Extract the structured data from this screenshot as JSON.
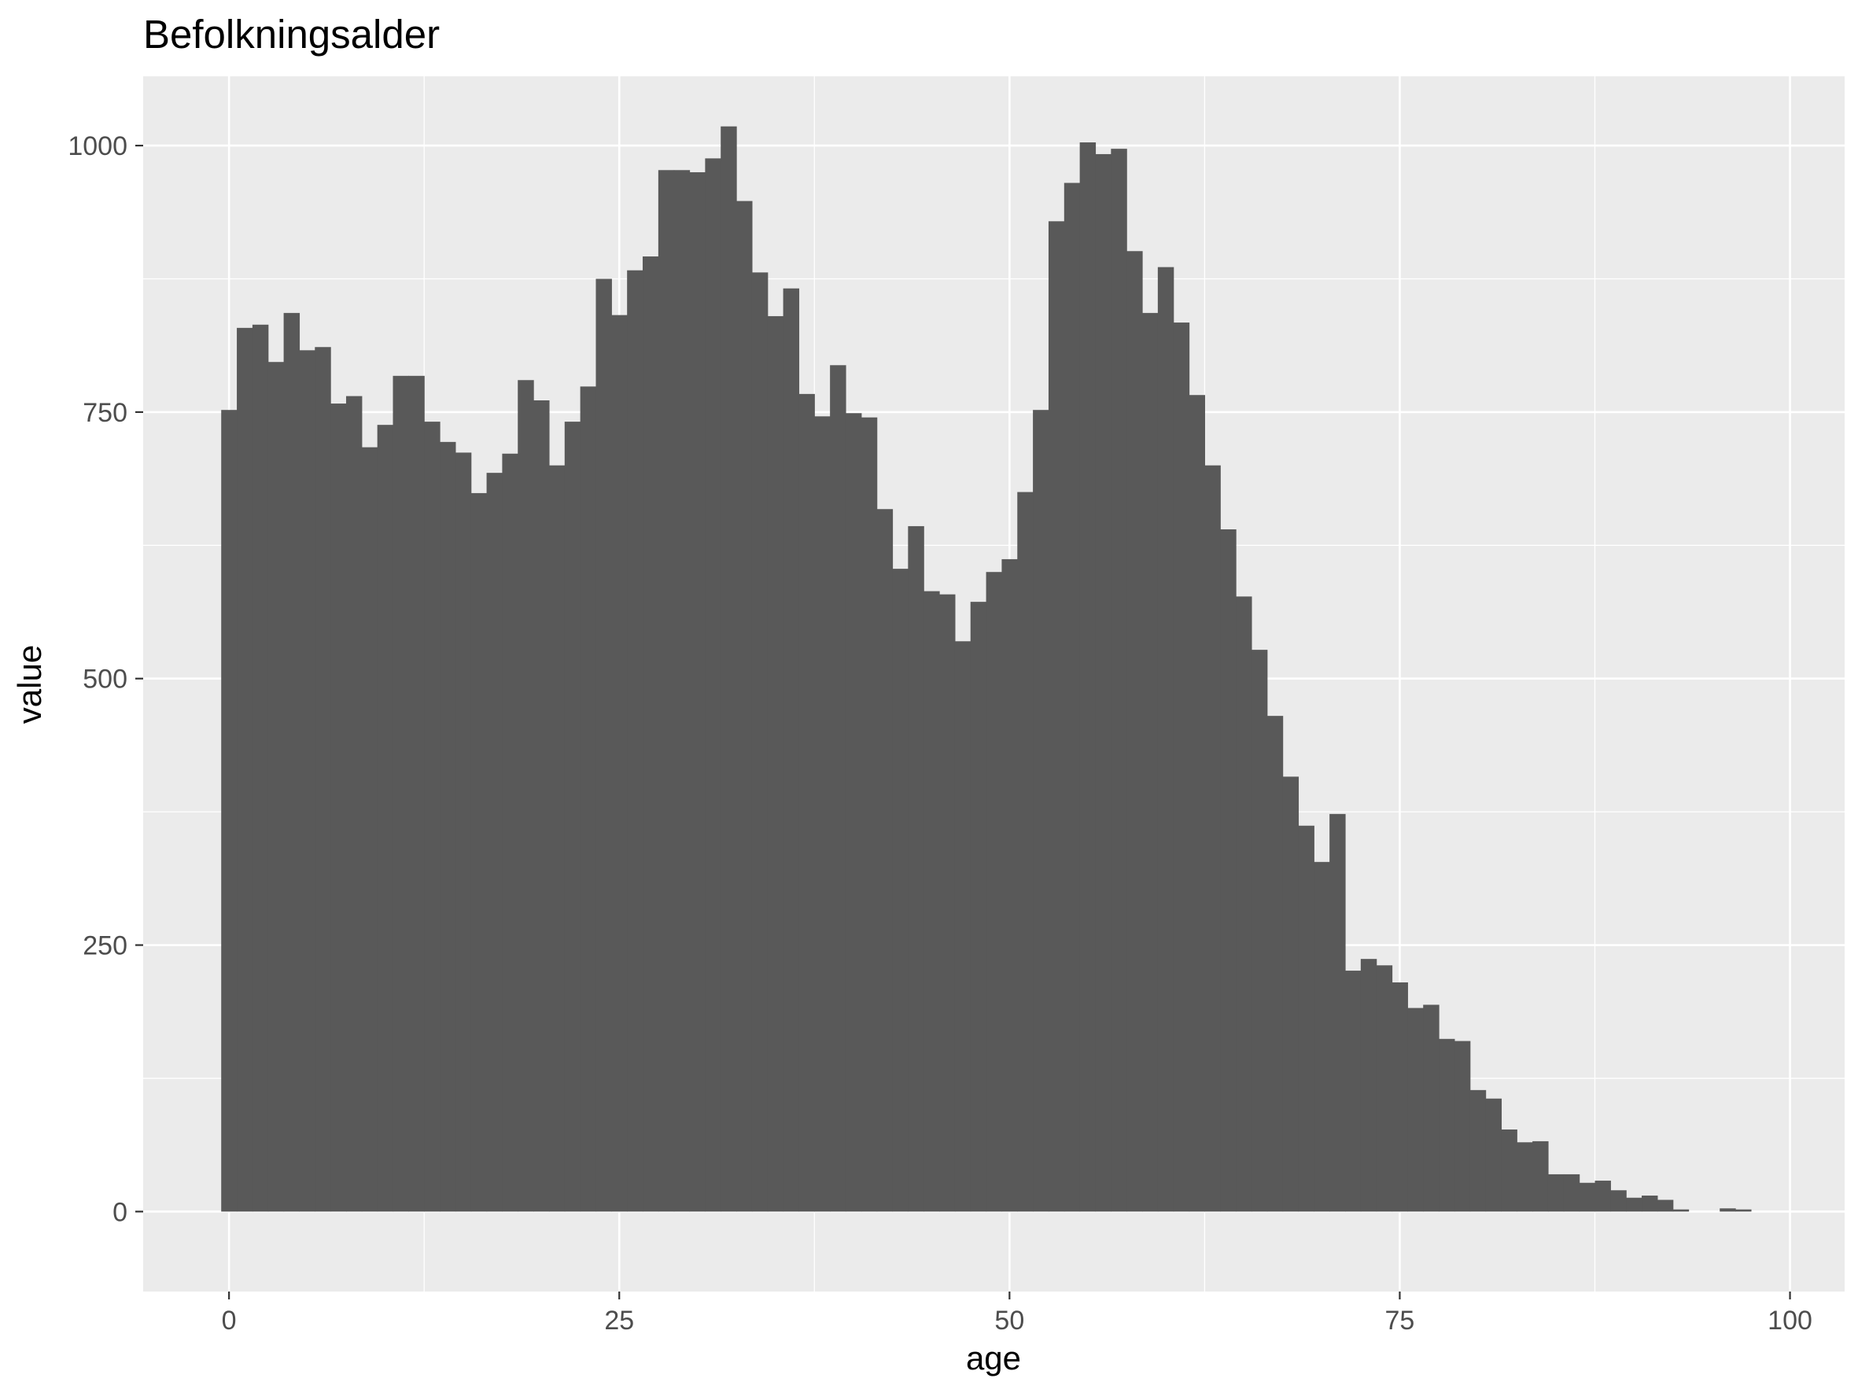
{
  "chart_data": {
    "type": "bar",
    "title": "Befolkningsalder",
    "xlabel": "age",
    "ylabel": "value",
    "xlim": [
      -5.5,
      103.5
    ],
    "ylim": [
      -75,
      1065
    ],
    "x_ticks": [
      "0",
      "25",
      "50",
      "75",
      "100"
    ],
    "y_ticks": [
      "0",
      "250",
      "500",
      "750",
      "1000"
    ],
    "grid": true,
    "legend": "none",
    "colors": {
      "bar": "#595959",
      "panel_background": "#ebebeb",
      "grid_line": "#ffffff",
      "tick_label": "#4d4d4d",
      "tick_mark": "#333333"
    },
    "x": [
      0,
      1,
      2,
      3,
      4,
      5,
      6,
      7,
      8,
      9,
      10,
      11,
      12,
      13,
      14,
      15,
      16,
      17,
      18,
      19,
      20,
      21,
      22,
      23,
      24,
      25,
      26,
      27,
      28,
      29,
      30,
      31,
      32,
      33,
      34,
      35,
      36,
      37,
      38,
      39,
      40,
      41,
      42,
      43,
      44,
      45,
      46,
      47,
      48,
      49,
      50,
      51,
      52,
      53,
      54,
      55,
      56,
      57,
      58,
      59,
      60,
      61,
      62,
      63,
      64,
      65,
      66,
      67,
      68,
      69,
      70,
      71,
      72,
      73,
      74,
      75,
      76,
      77,
      78,
      79,
      80,
      81,
      82,
      83,
      84,
      85,
      86,
      87,
      88,
      89,
      90,
      91,
      92,
      93,
      94,
      95,
      96,
      97
    ],
    "values": [
      752,
      829,
      832,
      797,
      843,
      808,
      811,
      758,
      765,
      717,
      738,
      784,
      784,
      741,
      722,
      712,
      674,
      693,
      711,
      780,
      761,
      700,
      741,
      774,
      875,
      841,
      883,
      896,
      977,
      977,
      975,
      988,
      1018,
      948,
      881,
      840,
      866,
      767,
      746,
      794,
      749,
      745,
      659,
      603,
      643,
      582,
      579,
      535,
      572,
      600,
      612,
      675,
      752,
      929,
      965,
      1003,
      992,
      997,
      901,
      843,
      886,
      834,
      766,
      700,
      640,
      577,
      527,
      465,
      408,
      362,
      328,
      373,
      226,
      237,
      231,
      215,
      191,
      194,
      162,
      160,
      114,
      106,
      77,
      65,
      66,
      35,
      35,
      27,
      29,
      20,
      13,
      15,
      11,
      2,
      0,
      0,
      3,
      2
    ]
  }
}
